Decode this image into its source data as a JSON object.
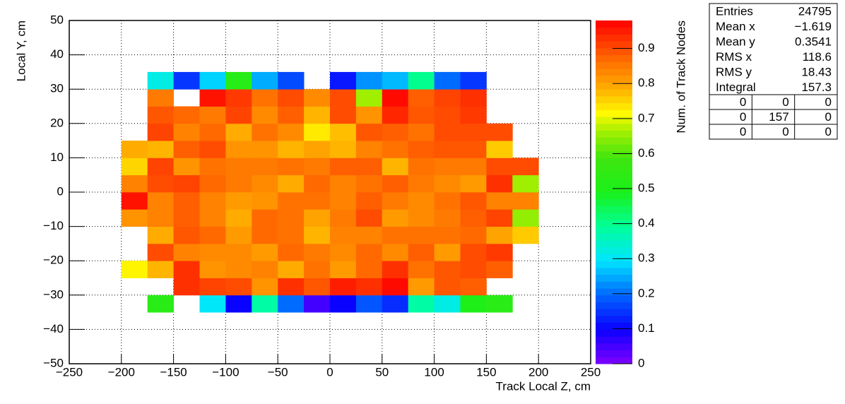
{
  "chart_data": {
    "type": "heatmap",
    "x_label": "Track Local Z, cm",
    "y_label": "Local Y, cm",
    "z_label": "Num. of Track Nodes",
    "palette": "rainbow",
    "grid": true,
    "xbins": [
      -200,
      -175,
      -150,
      -125,
      -100,
      -75,
      -50,
      -25,
      0,
      25,
      50,
      75,
      100,
      125,
      150,
      175,
      200
    ],
    "ybins": [
      -35,
      -30,
      -25,
      -20,
      -15,
      -10,
      -5,
      0,
      5,
      10,
      15,
      20,
      25,
      30,
      35
    ],
    "z": [
      [
        null,
        0.53,
        null,
        0.3,
        0.1,
        0.38,
        0.2,
        0.05,
        0.1,
        0.18,
        0.14,
        0.38,
        0.32,
        0.5,
        0.53,
        null
      ],
      [
        null,
        null,
        0.93,
        0.91,
        0.9,
        0.82,
        0.93,
        0.89,
        0.95,
        0.93,
        0.97,
        0.81,
        0.89,
        0.88,
        null,
        null
      ],
      [
        0.72,
        0.78,
        0.93,
        0.82,
        0.83,
        0.84,
        0.79,
        0.86,
        0.81,
        0.87,
        0.93,
        0.86,
        0.89,
        0.9,
        0.88,
        null
      ],
      [
        null,
        0.9,
        0.84,
        0.83,
        0.83,
        0.81,
        0.87,
        0.85,
        0.83,
        0.87,
        0.83,
        0.88,
        0.81,
        0.9,
        0.92,
        null
      ],
      [
        null,
        0.79,
        0.89,
        0.87,
        0.81,
        0.87,
        0.86,
        0.78,
        0.84,
        0.84,
        0.86,
        0.86,
        0.86,
        0.87,
        0.8,
        0.76
      ],
      [
        0.82,
        0.84,
        0.88,
        0.84,
        0.79,
        0.87,
        0.86,
        0.8,
        0.85,
        0.9,
        0.81,
        0.83,
        0.85,
        0.88,
        0.91,
        0.65
      ],
      [
        0.96,
        0.84,
        0.88,
        0.84,
        0.81,
        0.82,
        0.86,
        0.86,
        0.84,
        0.88,
        0.85,
        0.83,
        0.86,
        0.89,
        0.84,
        0.84
      ],
      [
        0.84,
        0.9,
        0.91,
        0.87,
        0.85,
        0.83,
        0.79,
        0.87,
        0.84,
        0.86,
        0.88,
        0.85,
        0.83,
        0.81,
        0.93,
        0.66
      ],
      [
        0.75,
        0.91,
        0.82,
        0.86,
        0.85,
        0.85,
        0.86,
        0.85,
        0.88,
        0.88,
        0.78,
        0.86,
        0.85,
        0.85,
        0.9,
        0.9
      ],
      [
        0.79,
        0.78,
        0.88,
        0.9,
        0.82,
        0.82,
        0.78,
        0.8,
        0.78,
        0.84,
        0.86,
        0.88,
        0.89,
        0.89,
        0.76,
        null
      ],
      [
        null,
        0.91,
        0.84,
        0.87,
        0.79,
        0.86,
        0.83,
        0.73,
        0.77,
        0.89,
        0.88,
        0.86,
        0.9,
        0.9,
        0.9,
        null
      ],
      [
        null,
        0.89,
        0.87,
        0.85,
        0.91,
        0.83,
        0.88,
        0.78,
        0.9,
        0.82,
        0.94,
        0.89,
        0.9,
        0.92,
        null,
        null
      ],
      [
        null,
        0.85,
        null,
        0.96,
        0.92,
        0.86,
        0.9,
        0.83,
        0.9,
        0.66,
        0.97,
        0.88,
        0.91,
        0.93,
        null,
        null
      ],
      [
        null,
        0.32,
        0.15,
        0.28,
        0.52,
        0.25,
        0.17,
        null,
        0.12,
        0.23,
        0.26,
        0.4,
        0.2,
        0.15,
        null,
        null
      ]
    ],
    "xlim": [
      -250,
      250
    ],
    "xticks": [
      {
        "value": -250,
        "label": "−250"
      },
      {
        "value": -200,
        "label": "−200"
      },
      {
        "value": -150,
        "label": "−150"
      },
      {
        "value": -100,
        "label": "−100"
      },
      {
        "value": -50,
        "label": "−50"
      },
      0,
      50,
      100,
      150,
      200,
      250
    ],
    "ylim": [
      -50,
      50
    ],
    "yticks": [
      {
        "value": -50,
        "label": "−50"
      },
      {
        "value": -40,
        "label": "−40"
      },
      {
        "value": -30,
        "label": "−30"
      },
      {
        "value": -20,
        "label": "−20"
      },
      {
        "value": -10,
        "label": "−10"
      },
      0,
      10,
      20,
      30,
      40,
      50
    ],
    "zlim": [
      0,
      0.98
    ],
    "zticks": [
      0,
      0.1,
      0.2,
      0.3,
      0.4,
      0.5,
      0.6,
      0.7,
      0.8,
      0.9
    ],
    "stats": [
      {
        "name": "Entries",
        "value": 24795
      },
      {
        "name": "Mean x",
        "value": {
          "value": -1.619,
          "label": "−1.619"
        }
      },
      {
        "name": "Mean y",
        "value": 0.3541
      },
      {
        "name": "RMS x",
        "value": 118.6
      },
      {
        "name": "RMS y",
        "value": 18.43
      },
      {
        "name": "Integral",
        "value": 157.3
      }
    ],
    "stats_table": [
      [
        0,
        0,
        0
      ],
      [
        0,
        157,
        0
      ],
      [
        0,
        0,
        0
      ]
    ]
  }
}
